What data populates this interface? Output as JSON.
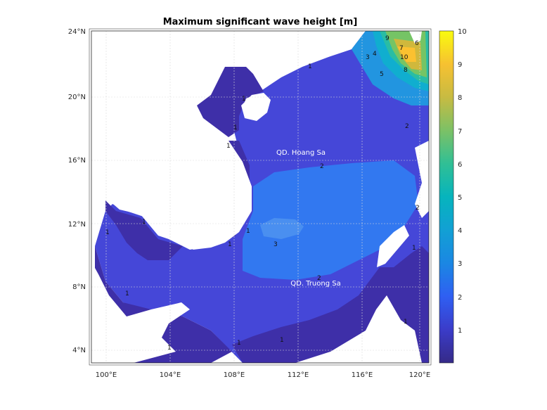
{
  "title": "Maximum significant wave height [m]",
  "x_ticks": [
    "100°E",
    "104°E",
    "108°E",
    "112°E",
    "116°E",
    "120°E"
  ],
  "y_ticks": [
    "24°N",
    "20°N",
    "16°N",
    "12°N",
    "8°N",
    "4°N"
  ],
  "colorbar_ticks": [
    "10",
    "9",
    "8",
    "7",
    "6",
    "5",
    "4",
    "3",
    "2",
    "1"
  ],
  "annotations": {
    "hoang_sa": "QD. Hoang Sa",
    "truong_sa": "QD. Truong Sa"
  },
  "contour_labels": [
    "1",
    "1",
    "1",
    "1",
    "1",
    "1",
    "1",
    "1",
    "1",
    "1",
    "1",
    "1",
    "1",
    "1",
    "2",
    "2",
    "2",
    "2",
    "3",
    "3",
    "4",
    "5",
    "6",
    "7",
    "8",
    "9",
    "10"
  ],
  "colors": {
    "land": "#ffffff",
    "level_1": "#3e2fa8",
    "level_2": "#4547d8",
    "level_3": "#3278f0",
    "level_4": "#2295e0",
    "level_5": "#10aecf",
    "level_6": "#29bda4",
    "level_7": "#75c465",
    "level_8": "#d0b83c",
    "level_9": "#fbc130",
    "level_10": "#f9fb0e"
  },
  "colormap": "parula",
  "colorbar_range": [
    0,
    10
  ],
  "extent": {
    "lon": [
      99.2,
      120.8
    ],
    "lat": [
      3.2,
      24.0
    ]
  }
}
